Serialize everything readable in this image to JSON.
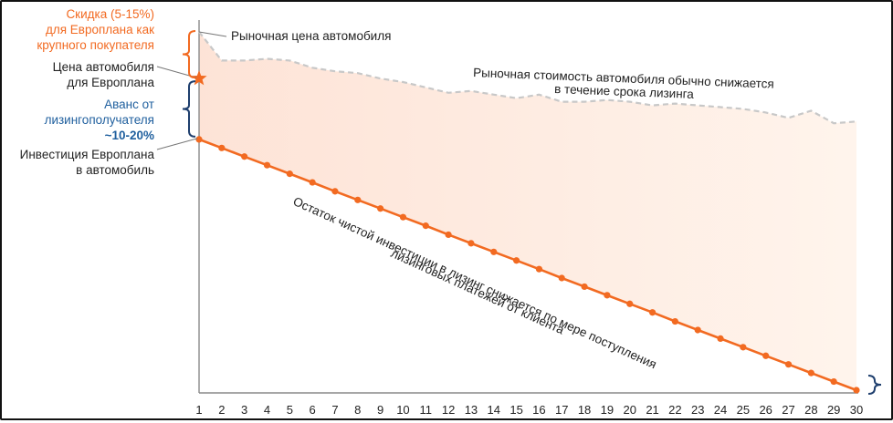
{
  "chart_data": {
    "type": "line",
    "title": "",
    "xlabel": "",
    "ylabel": "",
    "x": [
      1,
      2,
      3,
      4,
      5,
      6,
      7,
      8,
      9,
      10,
      11,
      12,
      13,
      14,
      15,
      16,
      17,
      18,
      19,
      20,
      21,
      22,
      23,
      24,
      25,
      26,
      27,
      28,
      29,
      30
    ],
    "xlim": [
      1,
      30
    ],
    "ylim": [
      0,
      100
    ],
    "grid": false,
    "series": [
      {
        "name": "Рыночная цена автомобиля",
        "style": "dashed",
        "color": "#c8c8c8",
        "values": [
          100,
          92,
          92,
          92.5,
          92,
          90,
          89,
          88.5,
          87,
          86,
          84.5,
          83,
          83.5,
          82.5,
          81.5,
          82.5,
          80.5,
          80.5,
          81,
          80.5,
          79.5,
          80,
          79.5,
          79,
          78.5,
          77.5,
          76,
          78,
          74.5,
          75
        ]
      },
      {
        "name": "Остаток чистой инвестиции",
        "style": "solid",
        "color": "#f26a21",
        "values": [
          70,
          67.6,
          65.2,
          62.8,
          60.4,
          58,
          55.5,
          53.1,
          50.7,
          48.3,
          45.9,
          43.4,
          41,
          38.6,
          36.2,
          33.8,
          31.3,
          28.9,
          26.5,
          24.1,
          21.7,
          19.2,
          16.8,
          14.4,
          12,
          9.6,
          7.2,
          4.8,
          2.4,
          0
        ]
      }
    ],
    "markers": {
      "europlan_price": {
        "x": 1,
        "y": 87,
        "shape": "star",
        "color": "#f26a21"
      }
    },
    "annotations": {
      "market_price_label": "Рыночная цена автомобиля",
      "market_trend_line1": "Рыночная стоимость автомобиля обычно снижается",
      "market_trend_line2": "в течение срока лизинга",
      "residual_line1": "Остаток чистой инвестиции в лизинг снижается по мере поступления",
      "residual_line2": "лизинговых платежей от клиента"
    },
    "left_labels": {
      "discount": [
        "Скидка (5-15%)",
        "для Европлана как",
        "крупного покупателя"
      ],
      "europlan_price": [
        "Цена автомобиля",
        "для Европлана"
      ],
      "advance": [
        "Аванс от",
        "лизингополучателя"
      ],
      "advance_pct": "~10-20%",
      "investment": [
        "Инвестиция Европлана",
        "в автомобиль"
      ]
    },
    "colors": {
      "orange": "#f26a21",
      "blue": "#1f5f9e",
      "dashed_gray": "#c8c8c8",
      "fill_top": "#fde0d2",
      "fill_bottom": "#fff3ea"
    }
  }
}
